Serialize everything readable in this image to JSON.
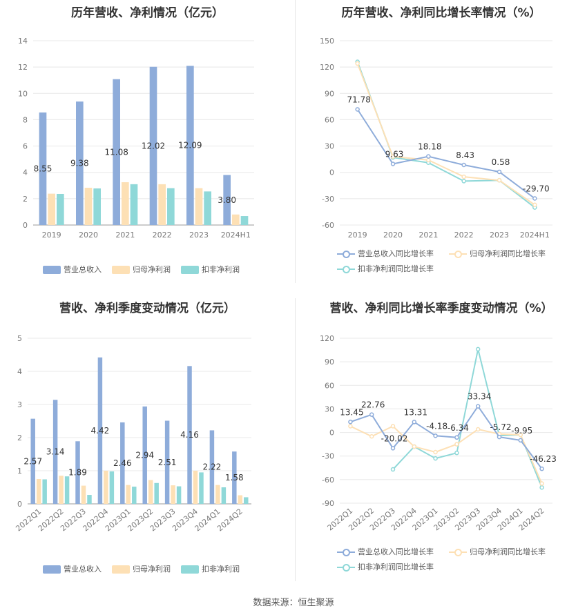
{
  "source_text": "数据来源：恒生聚源",
  "chart_data": [
    {
      "id": "annual-revenue-profit",
      "type": "bar",
      "title": "历年营收、净利情况（亿元）",
      "categories": [
        "2019",
        "2020",
        "2021",
        "2022",
        "2023",
        "2024H1"
      ],
      "ylim": [
        0,
        14
      ],
      "yticks": [
        0,
        2,
        4,
        6,
        8,
        10,
        12,
        14
      ],
      "series": [
        {
          "name": "营业总收入",
          "color": "#8eacda",
          "values": [
            8.55,
            9.38,
            11.08,
            12.02,
            12.09,
            3.8
          ],
          "labels": [
            "8.55",
            "9.38",
            "11.08",
            "12.02",
            "12.09",
            "3.80"
          ]
        },
        {
          "name": "归母净利润",
          "color": "#fde0b5",
          "values": [
            2.38,
            2.83,
            3.25,
            3.1,
            2.8,
            0.8
          ]
        },
        {
          "name": "扣非净利润",
          "color": "#8fd8d8",
          "values": [
            2.36,
            2.78,
            3.1,
            2.8,
            2.55,
            0.68
          ]
        }
      ]
    },
    {
      "id": "annual-growth",
      "type": "line",
      "title": "历年营收、净利同比增长率情况（%）",
      "categories": [
        "2019",
        "2020",
        "2021",
        "2022",
        "2023",
        "2024H1"
      ],
      "ylim": [
        -60,
        150
      ],
      "yticks": [
        -60,
        -30,
        0,
        30,
        60,
        90,
        120,
        150
      ],
      "series": [
        {
          "name": "营业总收入同比增长率",
          "color": "#8eacda",
          "values": [
            71.78,
            9.63,
            18.18,
            8.43,
            0.58,
            -29.7
          ],
          "labels": [
            "71.78",
            "9.63",
            "18.18",
            "8.43",
            "0.58",
            "-29.70"
          ]
        },
        {
          "name": "归母净利润同比增长率",
          "color": "#fde0b5",
          "values": [
            124,
            18,
            14,
            -5,
            -9,
            -37
          ]
        },
        {
          "name": "扣非净利润同比增长率",
          "color": "#8fd8d8",
          "values": [
            126,
            17,
            11,
            -10,
            -9,
            -40
          ]
        }
      ]
    },
    {
      "id": "quarterly-revenue-profit",
      "type": "bar",
      "title": "营收、净利季度变动情况（亿元）",
      "categories": [
        "2022Q1",
        "2022Q2",
        "2022Q3",
        "2022Q4",
        "2023Q1",
        "2023Q2",
        "2023Q3",
        "2023Q4",
        "2024Q1",
        "2024Q2"
      ],
      "ylim": [
        0,
        5
      ],
      "yticks": [
        0,
        1,
        2,
        3,
        4,
        5
      ],
      "series": [
        {
          "name": "营业总收入",
          "color": "#8eacda",
          "values": [
            2.57,
            3.14,
            1.89,
            4.42,
            2.46,
            2.94,
            2.51,
            4.16,
            2.22,
            1.58
          ],
          "labels": [
            "2.57",
            "3.14",
            "1.89",
            "4.42",
            "2.46",
            "2.94",
            "2.51",
            "4.16",
            "2.22",
            "1.58"
          ]
        },
        {
          "name": "归母净利润",
          "color": "#fde0b5",
          "values": [
            0.75,
            0.85,
            0.55,
            1.0,
            0.57,
            0.72,
            0.56,
            1.0,
            0.57,
            0.26
          ]
        },
        {
          "name": "扣非净利润",
          "color": "#8fd8d8",
          "values": [
            0.74,
            0.83,
            0.27,
            0.98,
            0.52,
            0.63,
            0.53,
            0.95,
            0.5,
            0.2
          ]
        }
      ]
    },
    {
      "id": "quarterly-growth",
      "type": "line",
      "title": "营收、净利同比增长率季度变动情况（%）",
      "categories": [
        "2022Q1",
        "2022Q2",
        "2022Q3",
        "2022Q4",
        "2023Q1",
        "2023Q2",
        "2023Q3",
        "2023Q4",
        "2024Q1",
        "2024Q2"
      ],
      "ylim": [
        -90,
        120
      ],
      "yticks": [
        -90,
        -60,
        -30,
        0,
        30,
        60,
        90,
        120
      ],
      "series": [
        {
          "name": "营业总收入同比增长率",
          "color": "#8eacda",
          "values": [
            13.45,
            22.76,
            -20.02,
            13.31,
            -4.18,
            -6.34,
            33.34,
            -5.72,
            -9.95,
            -46.23
          ],
          "labels": [
            "13.45",
            "22.76",
            "-20.02",
            "13.31",
            "-4.18",
            "-6.34",
            "33.34",
            "-5.72",
            "-9.95",
            "-46.23"
          ]
        },
        {
          "name": "归母净利润同比增长率",
          "color": "#fde0b5",
          "values": [
            8,
            -5,
            8,
            -18,
            -25,
            -15,
            4,
            -2,
            -3,
            -65
          ]
        },
        {
          "name": "扣非净利润同比增长率",
          "color": "#8fd8d8",
          "values": [
            null,
            null,
            -47,
            -18,
            -33,
            -26,
            106,
            -4,
            -3,
            -70
          ]
        }
      ]
    }
  ]
}
